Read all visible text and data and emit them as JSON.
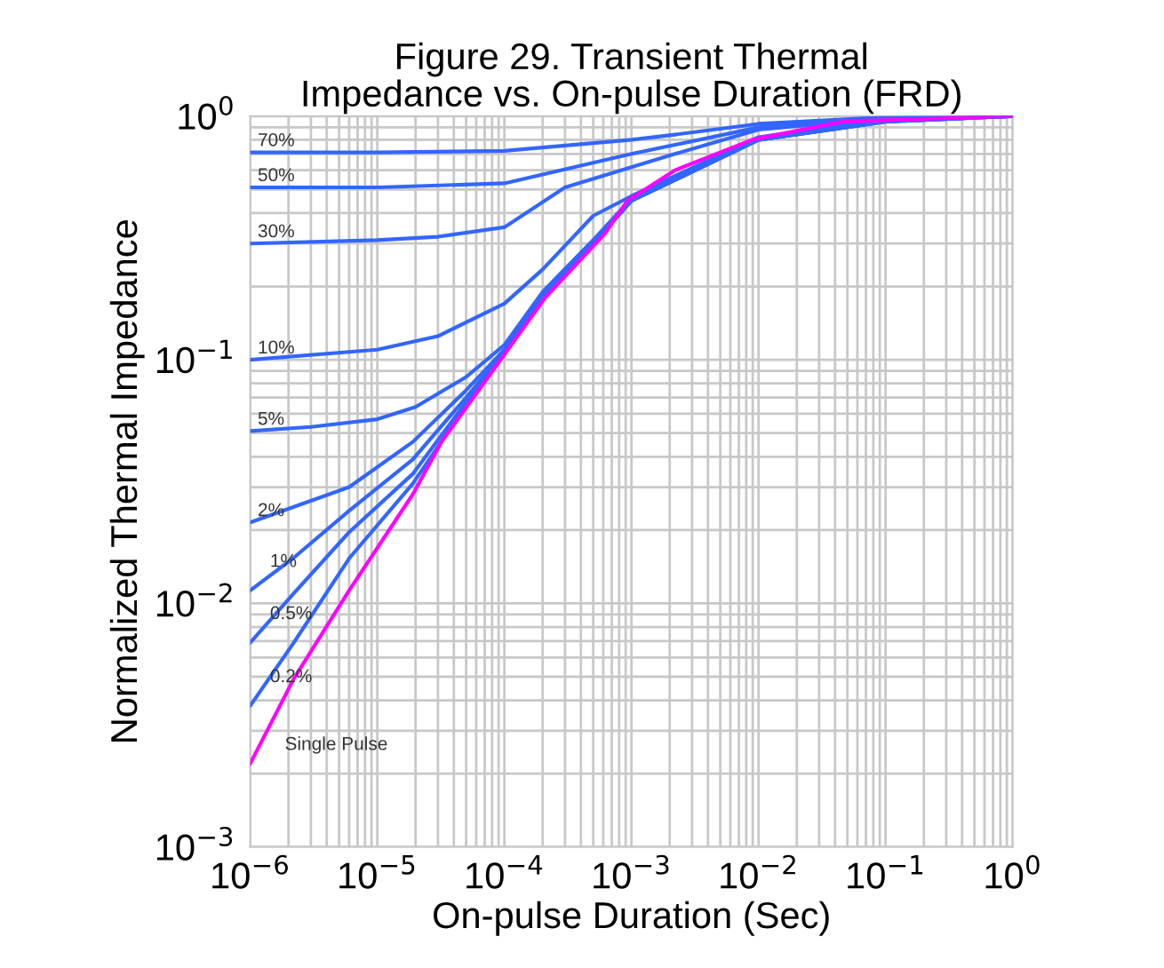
{
  "chart_data": {
    "type": "line",
    "title": "Figure 29. Transient Thermal\nImpedance vs. On-pulse Duration (FRD)",
    "xlabel": "On-pulse Duration (Sec)",
    "ylabel": "Normalized Thermal Impedance",
    "log": "xy",
    "grid": true,
    "legend": false,
    "marker": "none",
    "line_style": "solid",
    "xlim": [
      1e-06,
      1
    ],
    "ylim": [
      0.001,
      1
    ],
    "xticks": [
      {
        "value": 1e-06,
        "label": "10$^{−6}$"
      },
      {
        "value": 1e-05,
        "label": "10$^{−5}$"
      },
      {
        "value": 0.0001,
        "label": "10$^{−4}$"
      },
      {
        "value": 0.001,
        "label": "10$^{−3}$"
      },
      {
        "value": 0.01,
        "label": "10$^{−2}$"
      },
      {
        "value": 0.1,
        "label": "10$^{−1}$"
      },
      {
        "value": 1,
        "label": "10$^{0}$"
      }
    ],
    "yticks": [
      {
        "value": 0.001,
        "label": "10$^{−3}$"
      },
      {
        "value": 0.01,
        "label": "10$^{−2}$"
      },
      {
        "value": 0.1,
        "label": "10$^{−1}$"
      },
      {
        "value": 1,
        "label": "10$^{0}$"
      }
    ],
    "series": [
      {
        "name": "70%",
        "color": "#3366ff",
        "x": [
          1e-06,
          1e-05,
          0.0001,
          0.001,
          0.0022,
          0.01,
          0.1,
          1
        ],
        "values": [
          0.71,
          0.71,
          0.72,
          0.8,
          0.84,
          0.93,
          0.99,
          1.0
        ]
      },
      {
        "name": "50%",
        "color": "#3366ff",
        "x": [
          1e-06,
          1e-05,
          0.0001,
          0.001,
          0.01,
          0.1,
          1
        ],
        "values": [
          0.51,
          0.51,
          0.53,
          0.7,
          0.9,
          0.98,
          1.0
        ]
      },
      {
        "name": "30%",
        "color": "#3366ff",
        "x": [
          1e-06,
          1e-05,
          3e-05,
          0.0001,
          0.0003,
          0.0022,
          0.01,
          0.1,
          1
        ],
        "values": [
          0.3,
          0.31,
          0.32,
          0.35,
          0.51,
          0.7,
          0.88,
          0.98,
          1.0
        ]
      },
      {
        "name": "10%",
        "color": "#3366ff",
        "x": [
          1e-06,
          1e-05,
          3e-05,
          0.0001,
          0.0002,
          0.0005,
          0.001,
          0.01,
          0.1,
          1
        ],
        "values": [
          0.1,
          0.11,
          0.125,
          0.17,
          0.235,
          0.39,
          0.47,
          0.82,
          0.97,
          1.0
        ]
      },
      {
        "name": "5%",
        "color": "#3366ff",
        "x": [
          1e-06,
          3e-06,
          1e-05,
          2e-05,
          5e-05,
          0.0001,
          0.0002,
          0.0005,
          0.001,
          0.01,
          0.1,
          1
        ],
        "values": [
          0.051,
          0.053,
          0.057,
          0.064,
          0.085,
          0.115,
          0.19,
          0.31,
          0.46,
          0.81,
          0.96,
          1.0
        ]
      },
      {
        "name": "2%",
        "color": "#3366ff",
        "x": [
          1e-06,
          6e-06,
          1.9e-05,
          5e-05,
          0.0001,
          0.0002,
          0.0005,
          0.001,
          0.01,
          0.1,
          1
        ],
        "values": [
          0.0215,
          0.03,
          0.046,
          0.075,
          0.11,
          0.185,
          0.3,
          0.45,
          0.8,
          0.95,
          1.0
        ]
      },
      {
        "name": "1%",
        "color": "#3366ff",
        "x": [
          1e-06,
          2.2e-06,
          6e-06,
          1.9e-05,
          5e-05,
          0.0001,
          0.0002,
          0.0005,
          0.001,
          0.01,
          0.1,
          1
        ],
        "values": [
          0.0113,
          0.0154,
          0.024,
          0.039,
          0.07,
          0.108,
          0.18,
          0.3,
          0.45,
          0.8,
          0.95,
          1.0
        ]
      },
      {
        "name": "0.5%",
        "color": "#3366ff",
        "x": [
          1e-06,
          2.2e-06,
          6e-06,
          1.9e-05,
          5e-05,
          0.0001,
          0.0002,
          0.0005,
          0.001,
          0.01,
          0.1,
          1
        ],
        "values": [
          0.0069,
          0.011,
          0.0196,
          0.034,
          0.067,
          0.107,
          0.18,
          0.3,
          0.45,
          0.8,
          0.95,
          1.0
        ]
      },
      {
        "name": "0.2%",
        "color": "#3366ff",
        "x": [
          1e-06,
          2.2e-06,
          6e-06,
          1.9e-05,
          5e-05,
          0.0001,
          0.0002,
          0.0005,
          0.001,
          0.01,
          0.1,
          1
        ],
        "values": [
          0.0038,
          0.0069,
          0.0153,
          0.031,
          0.065,
          0.106,
          0.18,
          0.3,
          0.45,
          0.8,
          0.95,
          1.0
        ]
      },
      {
        "name": "Single Pulse",
        "color": "#ff00ff",
        "x": [
          1e-06,
          2.2e-06,
          6e-06,
          1.9e-05,
          3.2e-05,
          0.0001,
          0.00021,
          0.00062,
          0.00093,
          0.0022,
          0.0089,
          0.046,
          1
        ],
        "values": [
          0.0022,
          0.0049,
          0.0113,
          0.028,
          0.046,
          0.105,
          0.18,
          0.33,
          0.45,
          0.6,
          0.8,
          0.95,
          1.0
        ]
      }
    ]
  }
}
